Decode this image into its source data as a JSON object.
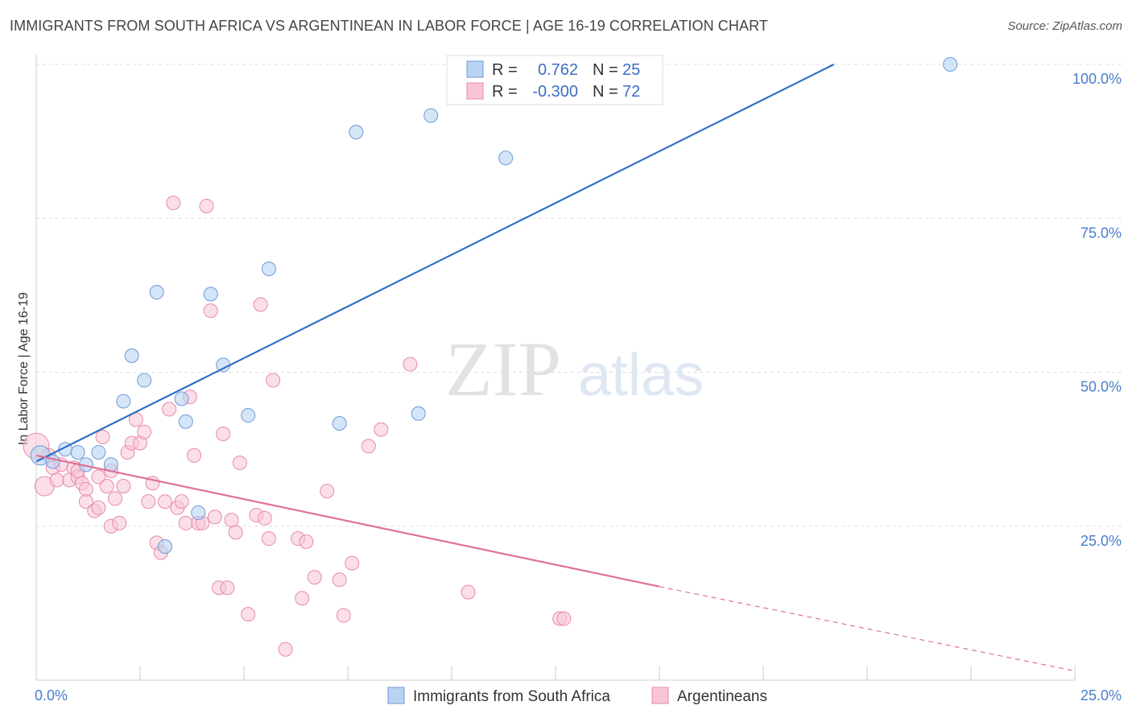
{
  "header": {
    "title": "IMMIGRANTS FROM SOUTH AFRICA VS ARGENTINEAN IN LABOR FORCE | AGE 16-19 CORRELATION CHART",
    "source": "Source: ZipAtlas.com"
  },
  "watermark": {
    "zip": "ZIP",
    "atlas": "atlas"
  },
  "legend": {
    "rows": [
      {
        "r_label": "R =",
        "r_value": "0.762",
        "n_label": "N =",
        "n_value": "25"
      },
      {
        "r_label": "R =",
        "r_value": "-0.300",
        "n_label": "N =",
        "n_value": "72"
      }
    ]
  },
  "colors": {
    "blue_fill": "#b9d3f3",
    "blue_stroke": "#6c9ad8",
    "blue_line": "#2f6fc6",
    "pink_fill": "#f8c5d5",
    "pink_stroke": "#e88aa8",
    "pink_line": "#e0709a",
    "grid": "#dddddd",
    "tick_label": "#4a7cc9"
  },
  "chart_data": {
    "type": "scatter",
    "title": "IMMIGRANTS FROM SOUTH AFRICA VS ARGENTINEAN IN LABOR FORCE | AGE 16-19 CORRELATION CHART",
    "ylabel": "In Labor Force | Age 16-19",
    "xlabel": "",
    "xlim": [
      0,
      25
    ],
    "ylim": [
      0,
      100
    ],
    "x_tick_labels": [
      "0.0%",
      "25.0%"
    ],
    "y_ticks": [
      25,
      50,
      75,
      100
    ],
    "y_tick_labels": [
      "25.0%",
      "50.0%",
      "75.0%",
      "100.0%"
    ],
    "grid": true,
    "legend_position": "top-center",
    "series": [
      {
        "name": "Immigrants from South Africa",
        "color": "#b9d3f3",
        "r": 0.762,
        "n": 25,
        "trend": {
          "x0": 0,
          "y0": 35.5,
          "x1": 19.2,
          "y1": 100
        },
        "points": [
          [
            0.1,
            36.5
          ],
          [
            0.4,
            35.5
          ],
          [
            0.7,
            37.5
          ],
          [
            1.0,
            37.0
          ],
          [
            1.2,
            35.0
          ],
          [
            1.5,
            37.0
          ],
          [
            1.8,
            35.0
          ],
          [
            2.1,
            45.3
          ],
          [
            2.3,
            52.7
          ],
          [
            2.6,
            48.7
          ],
          [
            2.9,
            63.0
          ],
          [
            3.1,
            21.7
          ],
          [
            3.5,
            45.7
          ],
          [
            3.6,
            42.0
          ],
          [
            3.9,
            27.2
          ],
          [
            4.2,
            62.7
          ],
          [
            4.5,
            51.2
          ],
          [
            5.1,
            43.0
          ],
          [
            5.6,
            66.8
          ],
          [
            7.3,
            41.7
          ],
          [
            7.7,
            89.0
          ],
          [
            9.2,
            43.3
          ],
          [
            9.5,
            91.7
          ],
          [
            11.3,
            84.8
          ],
          [
            22.0,
            100.0
          ]
        ]
      },
      {
        "name": "Argentineans",
        "color": "#f8c5d5",
        "r": -0.3,
        "n": 72,
        "trend": {
          "x0": 0,
          "y0": 36.5,
          "x1": 15.0,
          "y1": 15.2
        },
        "trend_dashed": {
          "x0": 15.0,
          "y0": 15.2,
          "x1": 25.0,
          "y1": 1.5
        },
        "points": [
          [
            0.0,
            38.0
          ],
          [
            0.2,
            31.5
          ],
          [
            0.4,
            34.5
          ],
          [
            0.5,
            32.5
          ],
          [
            0.6,
            35.0
          ],
          [
            0.8,
            32.5
          ],
          [
            0.9,
            34.5
          ],
          [
            1.0,
            33.0
          ],
          [
            1.1,
            32.0
          ],
          [
            1.2,
            31.0
          ],
          [
            1.2,
            29.0
          ],
          [
            1.4,
            27.5
          ],
          [
            1.5,
            28.0
          ],
          [
            1.5,
            33.0
          ],
          [
            1.6,
            39.5
          ],
          [
            1.7,
            31.5
          ],
          [
            1.8,
            34.0
          ],
          [
            1.8,
            25.0
          ],
          [
            1.9,
            29.5
          ],
          [
            2.0,
            25.5
          ],
          [
            2.1,
            31.5
          ],
          [
            2.2,
            37.0
          ],
          [
            2.3,
            38.5
          ],
          [
            2.4,
            42.3
          ],
          [
            2.5,
            38.5
          ],
          [
            2.6,
            40.3
          ],
          [
            2.7,
            29.0
          ],
          [
            2.8,
            32.0
          ],
          [
            2.9,
            22.3
          ],
          [
            3.0,
            20.7
          ],
          [
            3.1,
            29.0
          ],
          [
            3.2,
            44.0
          ],
          [
            3.3,
            77.5
          ],
          [
            3.4,
            28.0
          ],
          [
            3.5,
            29.0
          ],
          [
            3.6,
            25.5
          ],
          [
            3.7,
            46.0
          ],
          [
            3.8,
            36.5
          ],
          [
            3.9,
            25.5
          ],
          [
            4.0,
            25.5
          ],
          [
            4.1,
            77.0
          ],
          [
            4.2,
            60.0
          ],
          [
            4.3,
            26.5
          ],
          [
            4.4,
            15.0
          ],
          [
            4.5,
            40.0
          ],
          [
            4.6,
            15.0
          ],
          [
            4.7,
            26.0
          ],
          [
            4.8,
            24.0
          ],
          [
            4.9,
            35.3
          ],
          [
            5.1,
            10.7
          ],
          [
            5.3,
            26.8
          ],
          [
            5.4,
            61.0
          ],
          [
            5.5,
            26.3
          ],
          [
            5.6,
            23.0
          ],
          [
            5.7,
            48.7
          ],
          [
            6.0,
            5.0
          ],
          [
            6.3,
            23.0
          ],
          [
            6.4,
            13.3
          ],
          [
            6.5,
            22.5
          ],
          [
            6.7,
            16.7
          ],
          [
            7.0,
            30.7
          ],
          [
            7.3,
            16.3
          ],
          [
            7.4,
            10.5
          ],
          [
            7.6,
            19.0
          ],
          [
            8.0,
            38.0
          ],
          [
            8.3,
            40.7
          ],
          [
            9.0,
            51.3
          ],
          [
            10.4,
            14.3
          ],
          [
            12.6,
            10.0
          ],
          [
            12.7,
            10.0
          ],
          [
            0.3,
            36.5
          ],
          [
            1.0,
            34.0
          ]
        ]
      }
    ]
  },
  "bottom_legend": [
    {
      "label": "Immigrants from South Africa"
    },
    {
      "label": "Argentineans"
    }
  ]
}
